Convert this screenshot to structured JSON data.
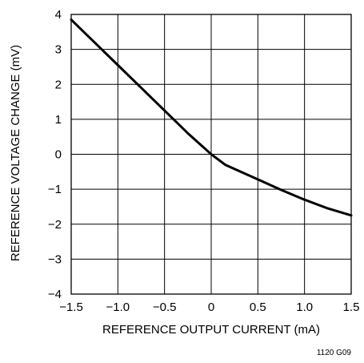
{
  "chart_data": {
    "type": "line",
    "title": "",
    "xlabel": "REFERENCE OUTPUT CURRENT (mA)",
    "ylabel": "REFERENCE VOLTAGE CHANGE (mV)",
    "xlim": [
      -1.5,
      1.5
    ],
    "ylim": [
      -4,
      4
    ],
    "grid": true,
    "x_ticks": [
      -1.5,
      -1.0,
      -0.5,
      0,
      0.5,
      1.0,
      1.5
    ],
    "x_tick_labels": [
      "−1.5",
      "−1.0",
      "−0.5",
      "0",
      "0.5",
      "1.0",
      "1.5"
    ],
    "y_ticks": [
      4,
      3,
      2,
      1,
      0,
      -1,
      -2,
      -3,
      -4
    ],
    "y_tick_labels": [
      "4",
      "3",
      "2",
      "1",
      "0",
      "−1",
      "−2",
      "−3",
      "−4"
    ],
    "series": [
      {
        "x": [
          -1.5,
          -1.25,
          -1.0,
          -0.75,
          -0.5,
          -0.25,
          0.0,
          0.15,
          0.25,
          0.5,
          0.75,
          1.0,
          1.25,
          1.5
        ],
        "y": [
          3.85,
          3.2,
          2.55,
          1.9,
          1.25,
          0.6,
          0.0,
          -0.3,
          -0.42,
          -0.72,
          -1.02,
          -1.3,
          -1.55,
          -1.75
        ]
      }
    ],
    "annotation": "1120 G09"
  }
}
